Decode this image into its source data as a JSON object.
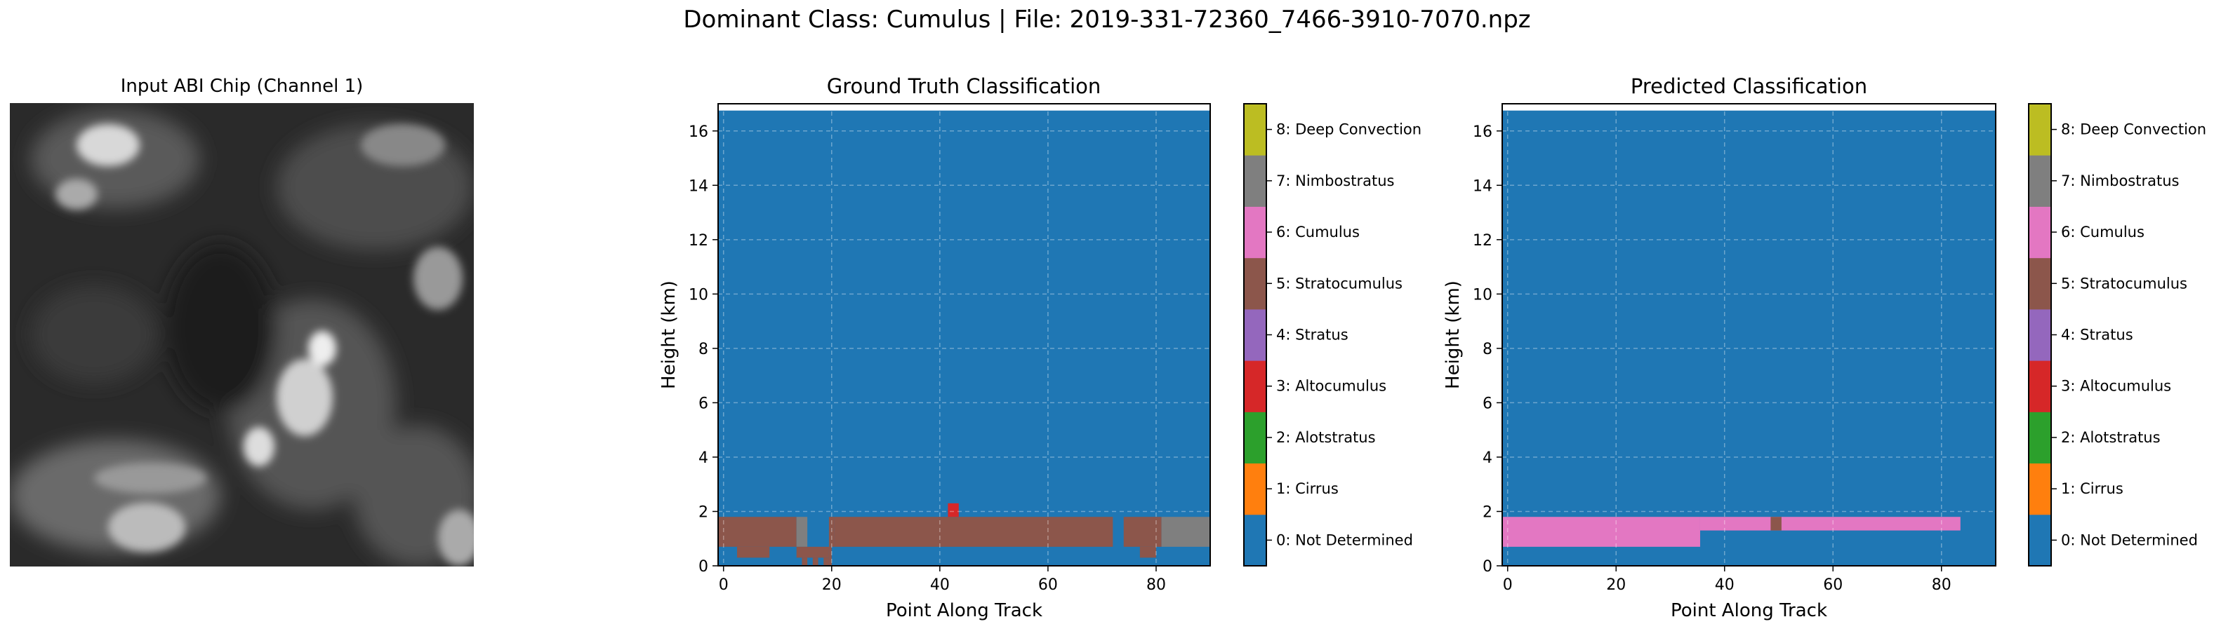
{
  "suptitle": "Dominant Class: Cumulus | File: 2019-331-72360_7466-3910-7070.npz",
  "input_panel": {
    "title": "Input ABI Chip (Channel 1)",
    "image": "grayscale satellite cloud imagery"
  },
  "class_colors": [
    "#1f77b4",
    "#ff7f0e",
    "#2ca02c",
    "#d62728",
    "#9467bd",
    "#8c564b",
    "#e377c2",
    "#7f7f7f",
    "#bcbd22",
    "#17becf"
  ],
  "chart_data": [
    {
      "type": "heatmap",
      "title": "Ground Truth Classification",
      "xlabel": "Point Along Track",
      "ylabel": "Height (km)",
      "xlim": [
        -1,
        90
      ],
      "ylim": [
        0,
        17
      ],
      "xticks": [
        0,
        20,
        40,
        60,
        80
      ],
      "yticks": [
        0,
        2,
        4,
        6,
        8,
        10,
        12,
        14,
        16
      ],
      "grid": true,
      "background_class": 0,
      "cells": [
        {
          "class": 5,
          "x0": -1,
          "x1": 13.5,
          "y0": 0.7,
          "y1": 1.8
        },
        {
          "class": 5,
          "x0": 2.5,
          "x1": 8.5,
          "y0": 0.3,
          "y1": 0.7
        },
        {
          "class": 7,
          "x0": 13.5,
          "x1": 15.5,
          "y0": 0.7,
          "y1": 1.8
        },
        {
          "class": 5,
          "x0": 13.5,
          "x1": 19.5,
          "y0": 0.3,
          "y1": 0.7
        },
        {
          "class": 5,
          "x0": 14.5,
          "x1": 15.5,
          "y0": 0,
          "y1": 0.3
        },
        {
          "class": 5,
          "x0": 16.5,
          "x1": 17.5,
          "y0": 0,
          "y1": 0.3
        },
        {
          "class": 5,
          "x0": 18.5,
          "x1": 19.5,
          "y0": 0,
          "y1": 0.3
        },
        {
          "class": 5,
          "x0": 19.5,
          "x1": 20,
          "y0": 0,
          "y1": 0.7
        },
        {
          "class": 5,
          "x0": 19.5,
          "x1": 20.5,
          "y0": 0.7,
          "y1": 1.3
        },
        {
          "class": 5,
          "x0": 19.5,
          "x1": 20.5,
          "y0": 1.3,
          "y1": 1.8
        },
        {
          "class": 5,
          "x0": 20.5,
          "x1": 72,
          "y0": 0.7,
          "y1": 1.8
        },
        {
          "class": 5,
          "x0": 74,
          "x1": 81,
          "y0": 0.7,
          "y1": 1.8
        },
        {
          "class": 5,
          "x0": 77,
          "x1": 80,
          "y0": 0.3,
          "y1": 0.7
        },
        {
          "class": 7,
          "x0": 81,
          "x1": 90,
          "y0": 0.7,
          "y1": 1.8
        },
        {
          "class": 3,
          "x0": 41.5,
          "x1": 43.5,
          "y0": 1.8,
          "y1": 2.3
        }
      ],
      "colorbar": [
        "0: Not Determined",
        "1: Cirrus",
        "2: Alotstratus",
        "3: Altocumulus",
        "4: Stratus",
        "5: Stratocumulus",
        "6: Cumulus",
        "7: Nimbostratus",
        "8: Deep Convection"
      ]
    },
    {
      "type": "heatmap",
      "title": "Predicted Classification",
      "xlabel": "Point Along Track",
      "ylabel": "Height (km)",
      "xlim": [
        -1,
        90
      ],
      "ylim": [
        0,
        17
      ],
      "xticks": [
        0,
        20,
        40,
        60,
        80
      ],
      "yticks": [
        0,
        2,
        4,
        6,
        8,
        10,
        12,
        14,
        16
      ],
      "grid": true,
      "background_class": 0,
      "cells": [
        {
          "class": 6,
          "x0": -1,
          "x1": 35.5,
          "y0": 0.7,
          "y1": 1.8
        },
        {
          "class": 6,
          "x0": 35.5,
          "x1": 83.5,
          "y0": 1.3,
          "y1": 1.8
        },
        {
          "class": 5,
          "x0": 48.5,
          "x1": 50.5,
          "y0": 1.3,
          "y1": 1.8
        }
      ],
      "colorbar": [
        "0: Not Determined",
        "1: Cirrus",
        "2: Alotstratus",
        "3: Altocumulus",
        "4: Stratus",
        "5: Stratocumulus",
        "6: Cumulus",
        "7: Nimbostratus",
        "8: Deep Convection"
      ]
    }
  ]
}
